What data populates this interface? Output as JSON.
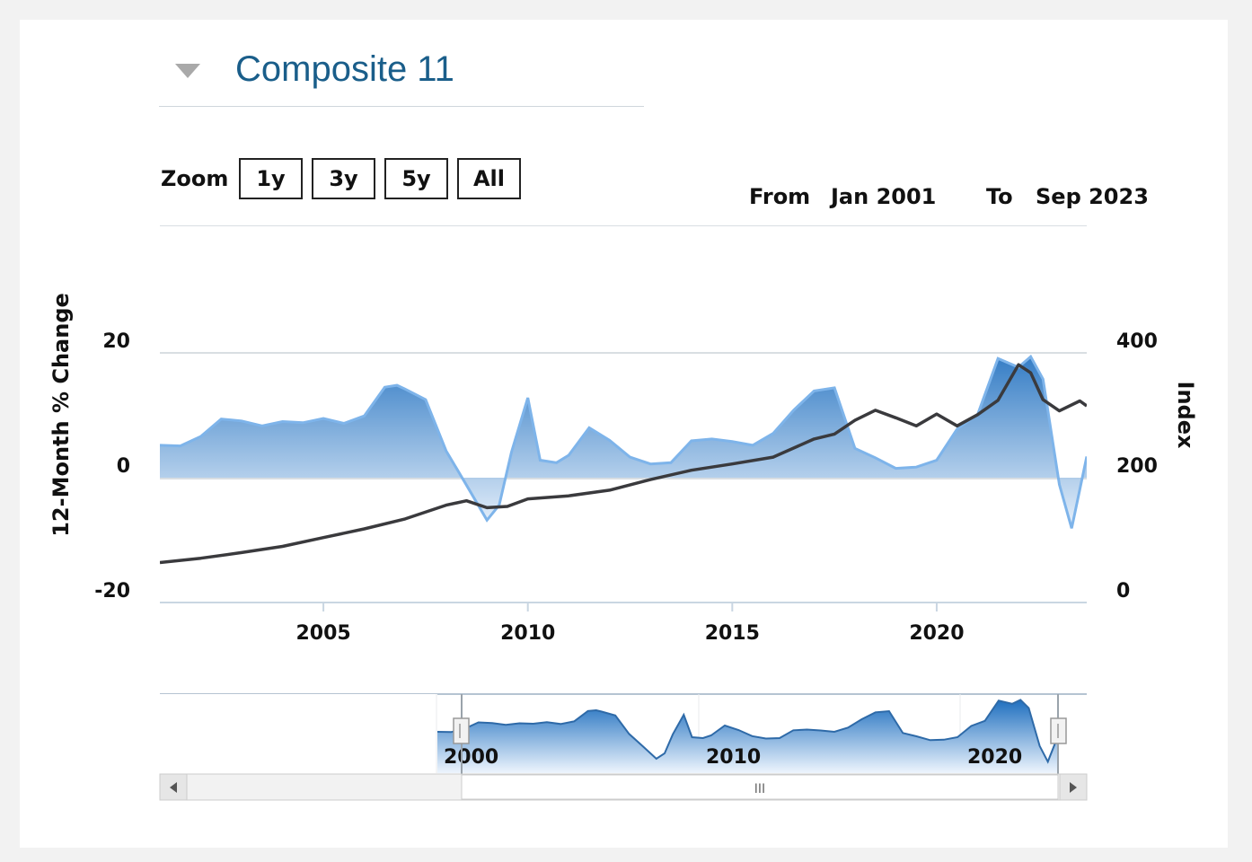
{
  "header": {
    "title": "Composite 11"
  },
  "zoom": {
    "label": "Zoom",
    "buttons": [
      "1y",
      "3y",
      "5y",
      "All"
    ]
  },
  "range": {
    "from_label": "From",
    "from_value": "Jan 2001",
    "to_label": "To",
    "to_value": "Sep 2023"
  },
  "colors": {
    "area_top": "#1f6fbf",
    "area_bottom": "#e6f0fb",
    "area_line": "#7eb4ea",
    "index_line": "#3a3a3d",
    "title": "#1a5e8a"
  },
  "chart_data": {
    "type": "area",
    "title": "",
    "xlabel": "",
    "ylabel_left": "12-Month % Change",
    "ylabel_right": "Index",
    "xlim": [
      2001.0,
      2023.67
    ],
    "ylim_left": [
      -20,
      20
    ],
    "ylim_right": [
      0,
      400
    ],
    "x_ticks": [
      "2005",
      "2010",
      "2015",
      "2020"
    ],
    "y_ticks_left": [
      "20",
      "0",
      "-20"
    ],
    "y_ticks_right": [
      "400",
      "200",
      "0"
    ],
    "grid": true,
    "legend": "none",
    "series": [
      {
        "name": "12-Month % Change",
        "axis": "left",
        "x": [
          2001.0,
          2001.5,
          2002.0,
          2002.5,
          2003.0,
          2003.5,
          2004.0,
          2004.5,
          2005.0,
          2005.5,
          2006.0,
          2006.5,
          2006.8,
          2007.0,
          2007.5,
          2008.0,
          2008.5,
          2009.0,
          2009.3,
          2009.6,
          2010.0,
          2010.3,
          2010.7,
          2011.0,
          2011.5,
          2012.0,
          2012.5,
          2013.0,
          2013.5,
          2014.0,
          2014.5,
          2015.0,
          2015.5,
          2016.0,
          2016.5,
          2017.0,
          2017.5,
          2018.0,
          2018.5,
          2019.0,
          2019.5,
          2020.0,
          2020.5,
          2021.0,
          2021.5,
          2022.0,
          2022.3,
          2022.6,
          2023.0,
          2023.3,
          2023.67
        ],
        "y": [
          5.2,
          5.1,
          6.6,
          9.4,
          9.1,
          8.3,
          9.0,
          8.8,
          9.5,
          8.7,
          9.9,
          14.5,
          14.8,
          14.2,
          12.5,
          4.3,
          -1.2,
          -6.8,
          -4.4,
          4.1,
          12.8,
          2.8,
          2.4,
          3.6,
          8.0,
          6.0,
          3.3,
          2.2,
          2.4,
          5.9,
          6.2,
          5.8,
          5.2,
          7.1,
          10.8,
          13.9,
          14.4,
          4.7,
          3.2,
          1.5,
          1.7,
          2.8,
          7.8,
          10.1,
          19.1,
          17.7,
          19.4,
          15.8,
          -1.1,
          -8.1,
          3.4
        ]
      },
      {
        "name": "Index",
        "axis": "right",
        "x": [
          2001.0,
          2002.0,
          2003.0,
          2004.0,
          2005.0,
          2006.0,
          2007.0,
          2008.0,
          2008.5,
          2009.0,
          2009.5,
          2010.0,
          2011.0,
          2012.0,
          2013.0,
          2014.0,
          2015.0,
          2016.0,
          2017.0,
          2017.5,
          2018.0,
          2018.5,
          2019.0,
          2019.5,
          2020.0,
          2020.5,
          2021.0,
          2021.5,
          2022.0,
          2022.3,
          2022.6,
          2023.0,
          2023.5,
          2023.67
        ],
        "y": [
          64,
          71,
          80,
          90,
          104,
          118,
          134,
          156,
          163,
          152,
          154,
          166,
          171,
          180,
          197,
          212,
          222,
          233,
          262,
          270,
          292,
          308,
          296,
          283,
          302,
          283,
          301,
          324,
          381,
          368,
          325,
          307,
          323,
          315
        ]
      }
    ]
  },
  "navigator": {
    "x_ticks": [
      "2000",
      "2010",
      "2020"
    ],
    "scroll_thumb": "III"
  }
}
